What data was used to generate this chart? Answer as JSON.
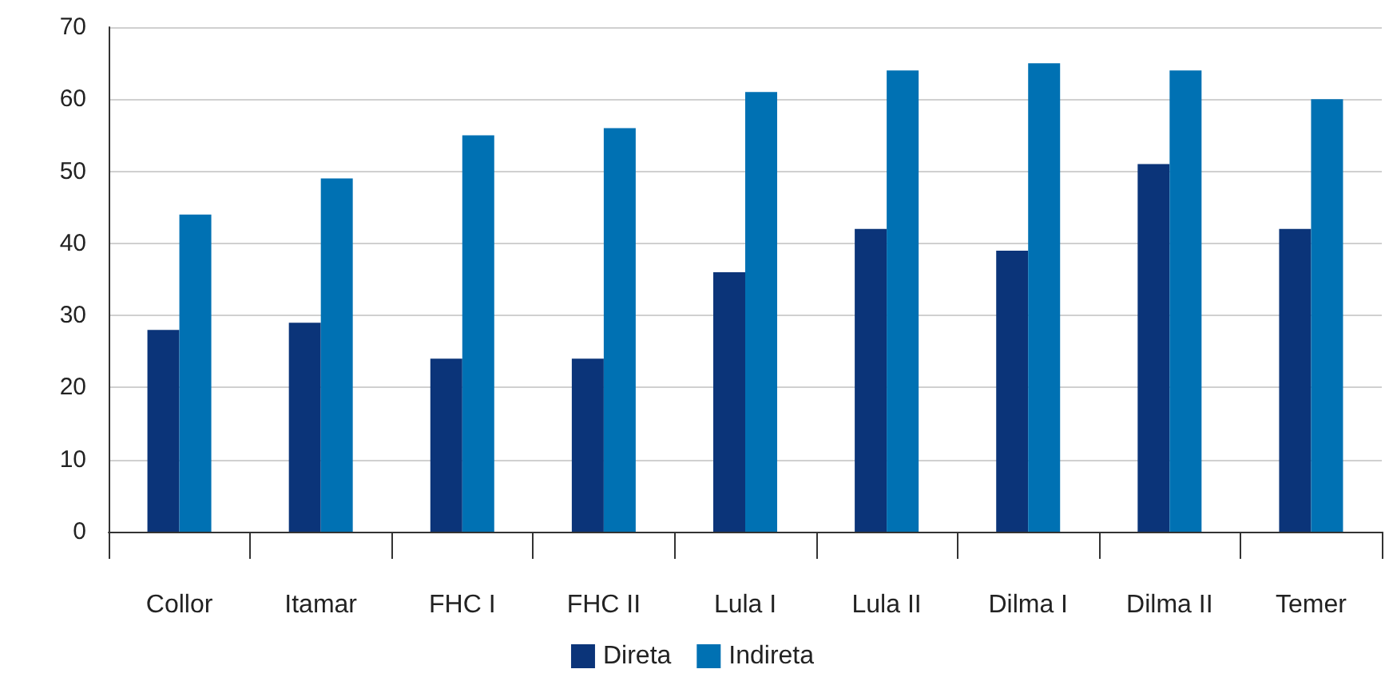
{
  "chart_data": {
    "type": "bar",
    "categories": [
      "Collor",
      "Itamar",
      "FHC I",
      "FHC II",
      "Lula I",
      "Lula II",
      "Dilma I",
      "Dilma II",
      "Temer"
    ],
    "series": [
      {
        "name": "Direta",
        "color": "#0b3479",
        "values": [
          28,
          29,
          24,
          24,
          36,
          42,
          39,
          51,
          42
        ]
      },
      {
        "name": "Indireta",
        "color": "#0071b3",
        "values": [
          44,
          49,
          55,
          56,
          61,
          64,
          65,
          64,
          60
        ]
      }
    ],
    "ylim": [
      0,
      70
    ],
    "yticks": [
      0,
      10,
      20,
      30,
      40,
      50,
      60,
      70
    ],
    "grid": "y",
    "legend": "bottom"
  }
}
